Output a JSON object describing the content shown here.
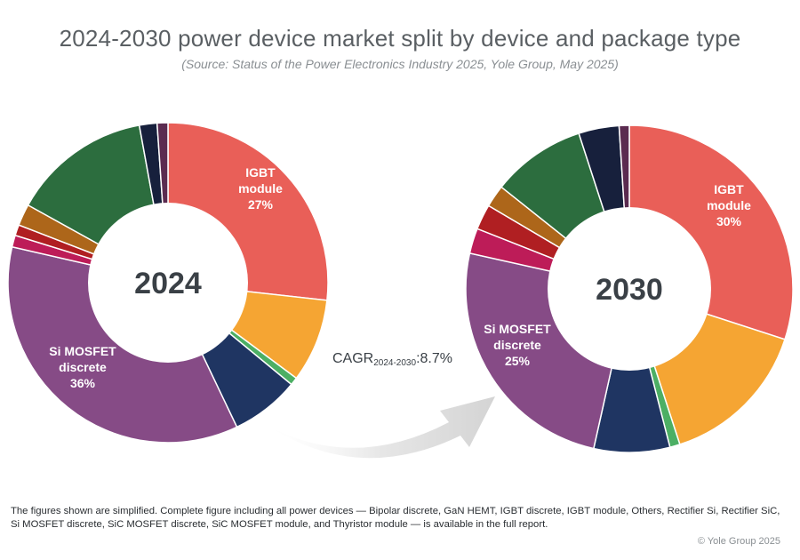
{
  "title": "2024-2030 power device market split by device and package type",
  "subtitle": "(Source: Status of the Power Electronics Industry 2025, Yole Group, May 2025)",
  "cagr": {
    "prefix": "CAGR",
    "range": "2024-2030",
    "value": ":8.7%"
  },
  "footnote": "The figures shown are simplified. Complete figure including all power devices — Bipolar discrete, GaN HEMT, IGBT discrete, IGBT module, Others, Rectifier Si, Rectifier SiC, Si MOSFET discrete, SiC MOSFET discrete, SiC MOSFET module, and Thyristor module — is available in the full report.",
  "copyright": "© Yole Group 2025",
  "chart_data": [
    {
      "type": "pie",
      "year": "2024",
      "slices": [
        {
          "name": "IGBT module",
          "value": 27,
          "color": "#e95f58",
          "label_lines": [
            "IGBT",
            "module",
            "27%"
          ]
        },
        {
          "name": "Segment (orange)",
          "value": 8.5,
          "color": "#f5a533"
        },
        {
          "name": "Segment (green)",
          "value": 0.8,
          "color": "#4caf64"
        },
        {
          "name": "Segment (navy)",
          "value": 7,
          "color": "#1f3562"
        },
        {
          "name": "Si MOSFET discrete",
          "value": 36,
          "color": "#864b86",
          "label_lines": [
            "Si MOSFET",
            "discrete",
            "36%"
          ]
        },
        {
          "name": "Segment (magenta)",
          "value": 1.2,
          "color": "#bd1c58"
        },
        {
          "name": "Segment (red)",
          "value": 1.1,
          "color": "#b01f22"
        },
        {
          "name": "Segment (brown)",
          "value": 2.2,
          "color": "#ad661a"
        },
        {
          "name": "Segment (dark green)",
          "value": 14.2,
          "color": "#2c6d3e"
        },
        {
          "name": "Segment (dark navy)",
          "value": 1.8,
          "color": "#17203c"
        },
        {
          "name": "Segment (plum)",
          "value": 1.1,
          "color": "#5b2b50"
        }
      ]
    },
    {
      "type": "pie",
      "year": "2030",
      "slices": [
        {
          "name": "IGBT module",
          "value": 30,
          "color": "#e95f58",
          "label_lines": [
            "IGBT",
            "module",
            "30%"
          ]
        },
        {
          "name": "Segment (orange)",
          "value": 15,
          "color": "#f5a533"
        },
        {
          "name": "Segment (green)",
          "value": 1,
          "color": "#4caf64"
        },
        {
          "name": "Segment (navy)",
          "value": 7.5,
          "color": "#1f3562"
        },
        {
          "name": "Si MOSFET discrete",
          "value": 25,
          "color": "#864b86",
          "label_lines": [
            "Si MOSFET",
            "discrete",
            "25%"
          ]
        },
        {
          "name": "Segment (magenta)",
          "value": 2.5,
          "color": "#bd1c58"
        },
        {
          "name": "Segment (red)",
          "value": 2.5,
          "color": "#b01f22"
        },
        {
          "name": "Segment (brown)",
          "value": 2.2,
          "color": "#ad661a"
        },
        {
          "name": "Segment (dark green)",
          "value": 9.3,
          "color": "#2c6d3e"
        },
        {
          "name": "Segment (dark navy)",
          "value": 4,
          "color": "#17203c"
        },
        {
          "name": "Segment (plum)",
          "value": 1,
          "color": "#5b2b50"
        }
      ]
    }
  ]
}
